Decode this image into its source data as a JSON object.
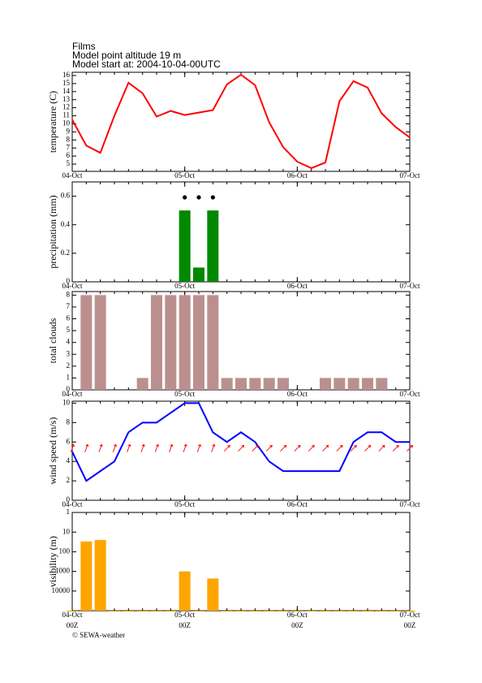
{
  "header": {
    "title": "Films",
    "altitude": "Model point altitude  19 m",
    "start": "Model start at: 2004-10-04-00UTC"
  },
  "footer": "© SEWA-weather",
  "chart_data": [
    {
      "type": "line",
      "ylabel": "temperature (C)",
      "color": "#ff0000",
      "x": [
        0,
        3,
        6,
        9,
        12,
        15,
        18,
        21,
        24,
        27,
        30,
        33,
        36,
        39,
        42,
        45,
        48,
        51,
        54,
        57,
        60,
        63,
        66,
        69,
        72
      ],
      "values": [
        10.5,
        7.3,
        6.4,
        11,
        15.1,
        13.8,
        10.9,
        11.6,
        11.1,
        11.4,
        11.7,
        14.9,
        16.1,
        14.8,
        10.2,
        7.1,
        5.3,
        4.5,
        5.2,
        12.8,
        15.3,
        14.5,
        11.3,
        9.6,
        8.3
      ],
      "xlim": [
        0,
        72
      ],
      "xticks": [
        {
          "value": 0,
          "label": "04-Oct"
        },
        {
          "value": 24,
          "label": "05-Oct"
        },
        {
          "value": 48,
          "label": "06-Oct"
        },
        {
          "value": 72,
          "label": "07-Oct"
        }
      ],
      "ylim": [
        4.1,
        16.4
      ],
      "yticks": [
        5,
        6,
        7,
        8,
        9,
        10,
        11,
        12,
        13,
        14,
        15,
        16
      ]
    },
    {
      "type": "bar",
      "ylabel": "precipitation (mm)",
      "color": "#008800",
      "x": [
        0,
        3,
        6,
        9,
        12,
        15,
        18,
        21,
        24,
        27,
        30,
        33,
        36,
        39,
        42,
        45,
        48,
        51,
        54,
        57,
        60,
        63,
        66,
        69,
        72
      ],
      "values": [
        0,
        0,
        0,
        0,
        0,
        0,
        0,
        0,
        0.5,
        0.1,
        0.5,
        0,
        0,
        0,
        0,
        0,
        0,
        0,
        0,
        0,
        0,
        0,
        0,
        0,
        0
      ],
      "markers_x": [
        24,
        27,
        30
      ],
      "xlim": [
        0,
        72
      ],
      "xticks": [
        {
          "value": 0,
          "label": "04-Oct"
        },
        {
          "value": 24,
          "label": "05-Oct"
        },
        {
          "value": 48,
          "label": "06-Oct"
        },
        {
          "value": 72,
          "label": "07-Oct"
        }
      ],
      "ylim": [
        0,
        0.7
      ],
      "yticks": [
        0,
        0.2,
        0.4,
        0.6
      ]
    },
    {
      "type": "bar",
      "ylabel": "total clouds",
      "color": "#bc8f8f",
      "x": [
        0,
        3,
        6,
        9,
        12,
        15,
        18,
        21,
        24,
        27,
        30,
        33,
        36,
        39,
        42,
        45,
        48,
        51,
        54,
        57,
        60,
        63,
        66,
        69,
        72
      ],
      "values": [
        0,
        8,
        8,
        0,
        0,
        1,
        8,
        8,
        8,
        8,
        8,
        1,
        1,
        1,
        1,
        1,
        0,
        0,
        1,
        1,
        1,
        1,
        1,
        0,
        0
      ],
      "xlim": [
        0,
        72
      ],
      "xticks": [
        {
          "value": 0,
          "label": "04-Oct"
        },
        {
          "value": 24,
          "label": "05-Oct"
        },
        {
          "value": 48,
          "label": "06-Oct"
        },
        {
          "value": 72,
          "label": "07-Oct"
        }
      ],
      "ylim": [
        0,
        8.3
      ],
      "yticks": [
        0,
        1,
        2,
        3,
        4,
        5,
        6,
        7,
        8
      ]
    },
    {
      "type": "line",
      "ylabel": "wind speed (m/s)",
      "color": "#0000ff",
      "arrow_color": "#ff0000",
      "x": [
        0,
        3,
        6,
        9,
        12,
        15,
        18,
        21,
        24,
        27,
        30,
        33,
        36,
        39,
        42,
        45,
        48,
        51,
        54,
        57,
        60,
        63,
        66,
        69,
        72
      ],
      "values": [
        5,
        2,
        3,
        4,
        7,
        8,
        8,
        9,
        10,
        10,
        7,
        6,
        7,
        6,
        4,
        3,
        3,
        3,
        3,
        3,
        6,
        7,
        7,
        6,
        6
      ],
      "directions": [
        20,
        20,
        20,
        20,
        20,
        20,
        20,
        20,
        20,
        20,
        20,
        45,
        45,
        45,
        45,
        45,
        45,
        45,
        45,
        45,
        45,
        45,
        45,
        45,
        45
      ],
      "xlim": [
        0,
        72
      ],
      "xticks": [
        {
          "value": 0,
          "label": "04-Oct"
        },
        {
          "value": 24,
          "label": "05-Oct"
        },
        {
          "value": 48,
          "label": "06-Oct"
        },
        {
          "value": 72,
          "label": "07-Oct"
        }
      ],
      "ylim": [
        0,
        10.2
      ],
      "yticks": [
        0,
        2,
        4,
        6,
        8,
        10
      ]
    },
    {
      "type": "bar",
      "ylabel": "visibility (m)",
      "color": "#ffa500",
      "log": true,
      "y_inverted": true,
      "x": [
        0,
        3,
        6,
        9,
        12,
        15,
        18,
        21,
        24,
        27,
        30,
        33,
        36,
        39,
        42,
        45,
        48,
        51,
        54,
        57,
        60,
        63,
        66,
        69,
        72
      ],
      "values": [
        100000,
        30,
        25,
        100000,
        100000,
        100000,
        100000,
        100000,
        1000,
        100000,
        2300,
        100000,
        100000,
        100000,
        100000,
        100000,
        100000,
        100000,
        100000,
        100000,
        100000,
        100000,
        100000,
        100000,
        100000
      ],
      "xlim": [
        0,
        72
      ],
      "xticks": [
        {
          "value": 0,
          "label": "04-Oct"
        },
        {
          "value": 24,
          "label": "05-Oct"
        },
        {
          "value": 48,
          "label": "06-Oct"
        },
        {
          "value": 72,
          "label": "07-Oct"
        }
      ],
      "xticks_sub": [
        "00Z",
        "00Z",
        "00Z",
        "00Z"
      ],
      "ylim": [
        1,
        100000
      ],
      "yticks": [
        1,
        10,
        100,
        1000,
        10000
      ]
    }
  ]
}
